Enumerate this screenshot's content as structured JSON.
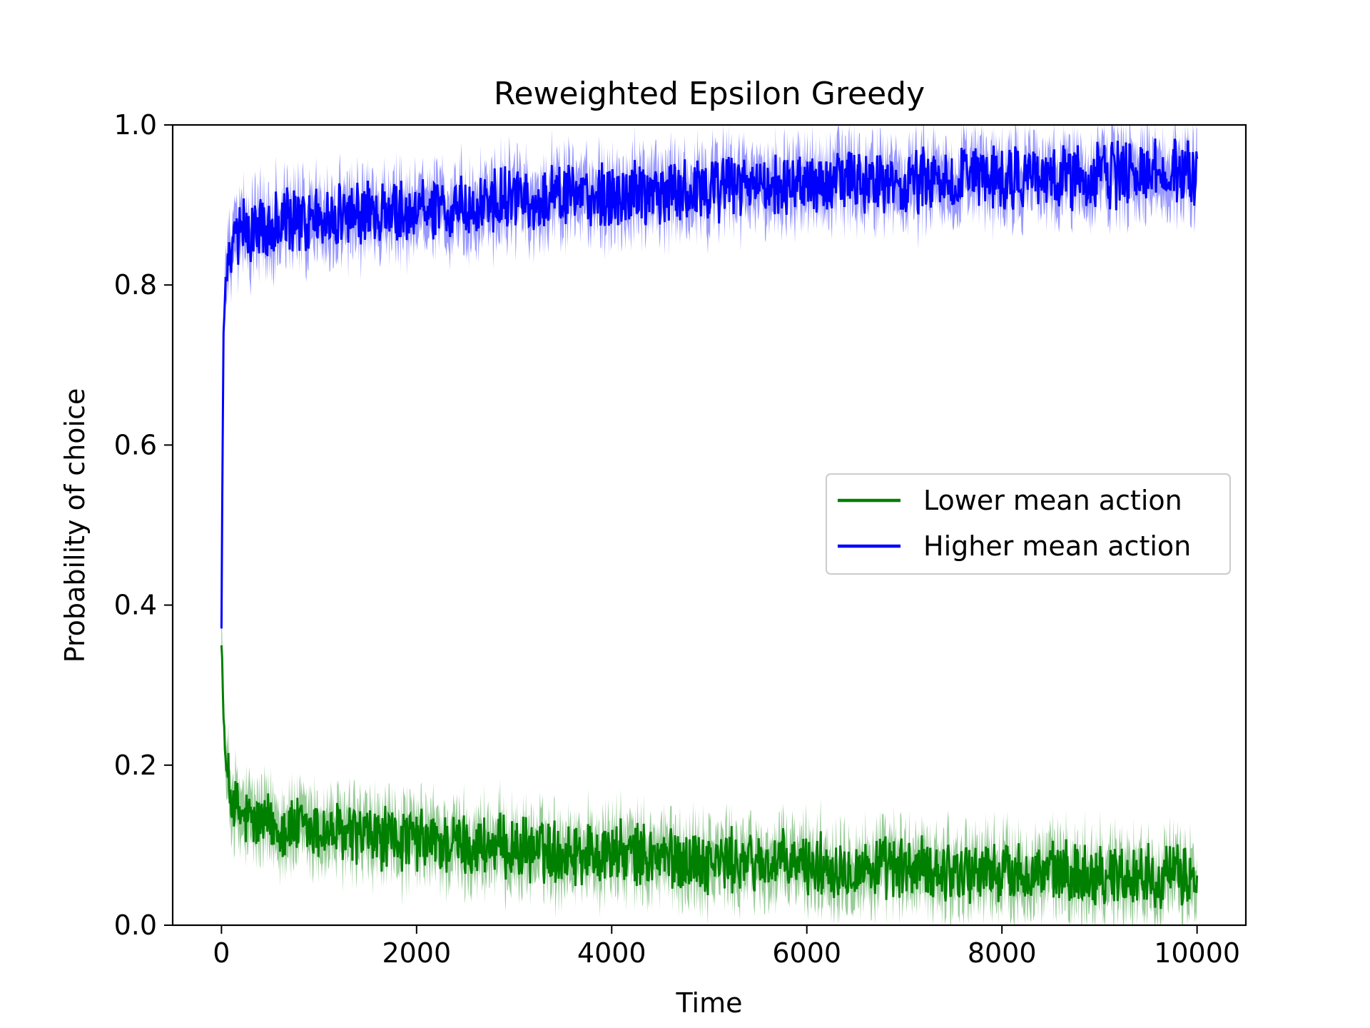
{
  "chart_data": {
    "type": "line",
    "title": "Reweighted Epsilon Greedy",
    "xlabel": "Time",
    "ylabel": "Probability of choice",
    "xlim": [
      -500,
      10500
    ],
    "ylim": [
      0.0,
      1.0
    ],
    "xticks": [
      0,
      2000,
      4000,
      6000,
      8000,
      10000
    ],
    "xtick_labels": [
      "0",
      "2000",
      "4000",
      "6000",
      "8000",
      "10000"
    ],
    "yticks": [
      0.0,
      0.2,
      0.4,
      0.6,
      0.8,
      1.0
    ],
    "ytick_labels": [
      "0.0",
      "0.2",
      "0.4",
      "0.6",
      "0.8",
      "1.0"
    ],
    "grid": false,
    "legend_position": "center-right",
    "series": [
      {
        "name": "Lower mean action",
        "color": "#008000",
        "band_color": "#008000",
        "band_opacity": 0.4,
        "x": [
          0,
          20,
          50,
          100,
          150,
          200,
          300,
          500,
          800,
          1000,
          1500,
          2000,
          2500,
          3000,
          3500,
          4000,
          4500,
          5000,
          5500,
          6000,
          6500,
          7000,
          7500,
          8000,
          8500,
          9000,
          9500,
          10000
        ],
        "mean": [
          0.37,
          0.26,
          0.19,
          0.16,
          0.145,
          0.135,
          0.13,
          0.125,
          0.12,
          0.117,
          0.11,
          0.105,
          0.1,
          0.095,
          0.092,
          0.09,
          0.085,
          0.08,
          0.078,
          0.075,
          0.072,
          0.07,
          0.068,
          0.066,
          0.065,
          0.064,
          0.062,
          0.06
        ],
        "noise": 0.035,
        "band_halfwidth": 0.035
      },
      {
        "name": "Higher mean action",
        "color": "#0000ff",
        "band_color": "#0000ff",
        "band_opacity": 0.4,
        "x": [
          0,
          20,
          50,
          100,
          150,
          200,
          300,
          500,
          800,
          1000,
          1500,
          2000,
          2500,
          3000,
          3500,
          4000,
          4500,
          5000,
          5500,
          6000,
          6500,
          7000,
          7500,
          8000,
          8500,
          9000,
          9500,
          10000
        ],
        "mean": [
          0.37,
          0.74,
          0.81,
          0.84,
          0.855,
          0.865,
          0.87,
          0.875,
          0.88,
          0.883,
          0.89,
          0.895,
          0.9,
          0.905,
          0.908,
          0.91,
          0.915,
          0.92,
          0.922,
          0.925,
          0.928,
          0.93,
          0.932,
          0.934,
          0.935,
          0.936,
          0.938,
          0.94
        ],
        "noise": 0.035,
        "band_halfwidth": 0.035
      }
    ]
  }
}
